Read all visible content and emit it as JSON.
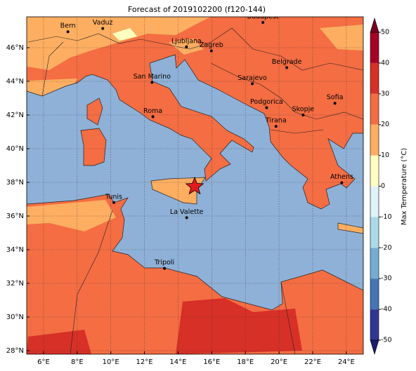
{
  "title": "Forecast of 2019102200 (f120-144)",
  "map": {
    "lon_labels": [
      "6°E",
      "8°E",
      "10°E",
      "12°E",
      "14°E",
      "16°E",
      "18°E",
      "20°E",
      "22°E",
      "24°E"
    ],
    "lat_labels": [
      "28°N",
      "30°N",
      "32°N",
      "34°N",
      "36°N",
      "38°N",
      "40°N",
      "42°N",
      "44°N",
      "46°N"
    ],
    "cities": [
      "Bern",
      "Vaduz",
      "Budapest",
      "Ljubljana",
      "Zagreb",
      "Belgrade",
      "San Marino",
      "Sarajevo",
      "Sofia",
      "Roma",
      "Podgorica",
      "Skopje",
      "Tirana",
      "Athens",
      "Tunis",
      "La Valette",
      "Tripoli"
    ]
  },
  "colorbar": {
    "label": "Max Temperature (°C)",
    "ticks": [
      -50,
      -40,
      -30,
      -20,
      -10,
      0,
      10,
      20,
      30,
      40,
      50
    ],
    "colors": [
      "#313695",
      "#4575b4",
      "#74add1",
      "#abd9e9",
      "#e0f3f8",
      "#ffffbf",
      "#fdae61",
      "#f46d43",
      "#d73027",
      "#a50026"
    ],
    "under_color": "#1c1c6e",
    "over_color": "#7a0020"
  }
}
